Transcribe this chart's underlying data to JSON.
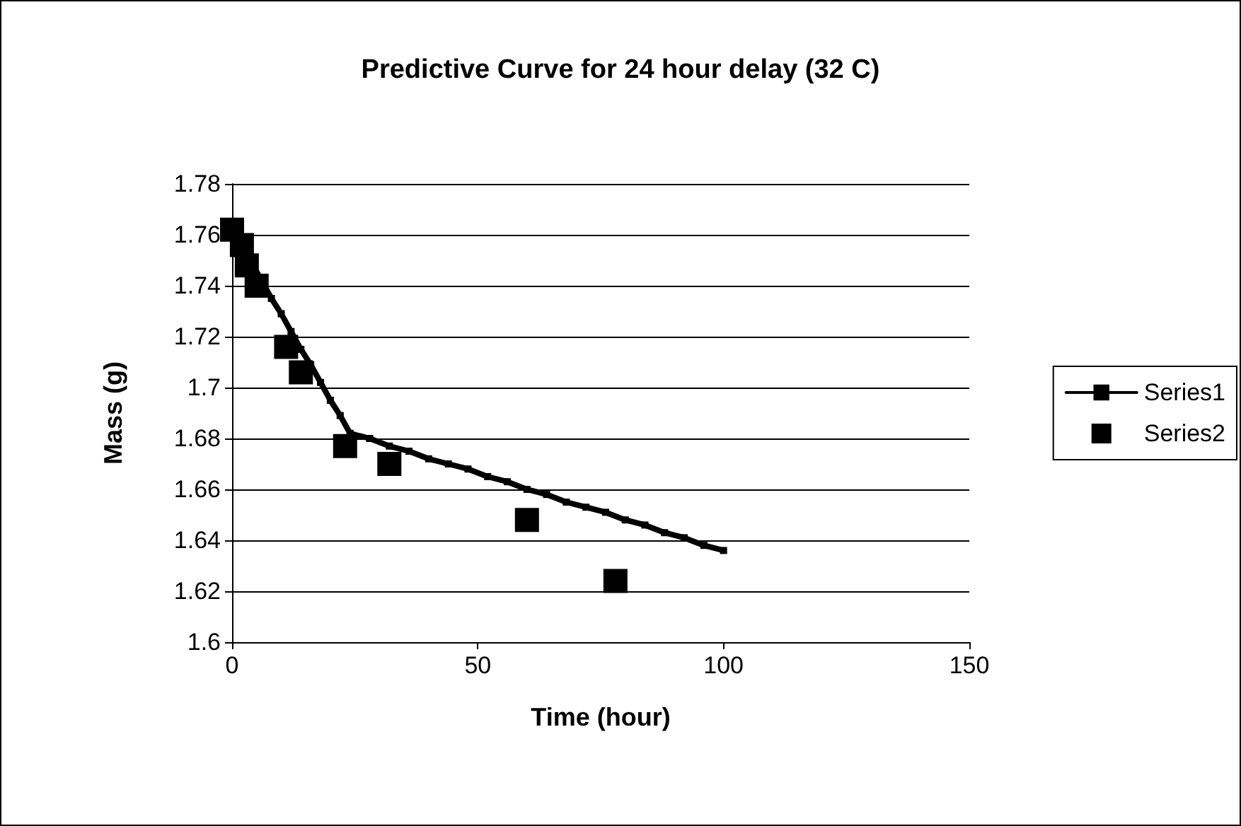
{
  "chart_data": {
    "type": "line",
    "title": "Predictive Curve for 24 hour delay (32 C)",
    "xlabel": "Time (hour)",
    "ylabel": "Mass (g)",
    "series": [
      {
        "name": "Series1",
        "color": "#000000",
        "marker": "square",
        "x": [
          0,
          2,
          4,
          6,
          8,
          10,
          12,
          14,
          16,
          18,
          20,
          22,
          24,
          28,
          32,
          36,
          40,
          44,
          48,
          52,
          56,
          60,
          64,
          68,
          72,
          76,
          80,
          84,
          88,
          92,
          96,
          100
        ],
        "values": [
          1.762,
          1.755,
          1.749,
          1.742,
          1.735,
          1.729,
          1.722,
          1.715,
          1.709,
          1.702,
          1.695,
          1.689,
          1.682,
          1.68,
          1.677,
          1.675,
          1.672,
          1.67,
          1.668,
          1.665,
          1.663,
          1.66,
          1.658,
          1.655,
          1.653,
          1.651,
          1.648,
          1.646,
          1.643,
          1.641,
          1.638,
          1.636
        ]
      },
      {
        "name": "Series2",
        "color": "#000000",
        "type": "scatter",
        "marker": "square",
        "x": [
          0,
          2,
          3,
          5,
          11,
          14,
          23,
          32,
          60,
          78
        ],
        "values": [
          1.762,
          1.756,
          1.748,
          1.74,
          1.716,
          1.706,
          1.677,
          1.67,
          1.648,
          1.624
        ]
      }
    ],
    "xlim": [
      0,
      150
    ],
    "xticks": [
      0,
      50,
      100,
      150
    ],
    "ylim": [
      1.6,
      1.78
    ],
    "yticks": [
      1.6,
      1.62,
      1.64,
      1.66,
      1.68,
      1.7,
      1.72,
      1.74,
      1.76,
      1.78
    ],
    "grid": "y",
    "legend": "right"
  }
}
